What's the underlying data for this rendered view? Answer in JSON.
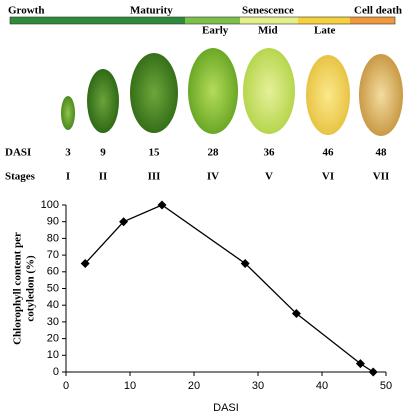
{
  "phases": {
    "top": [
      "Growth",
      "Maturity",
      "Senescence",
      "Cell death"
    ],
    "sub": [
      "Early",
      "Mid",
      "Late"
    ]
  },
  "leaf_table": {
    "dasi_label": "DASI",
    "dasi": [
      "3",
      "9",
      "15",
      "28",
      "36",
      "46",
      "48"
    ],
    "stages_label": "Stages",
    "stages": [
      "I",
      "II",
      "III",
      "IV",
      "V",
      "VI",
      "VII"
    ]
  },
  "chart_data": {
    "type": "line",
    "x_label": "DASI",
    "y_label_lines": [
      "Chlorophyll content per",
      "cotyledon (%)"
    ],
    "series": [
      {
        "name": "Chlorophyll",
        "color": "#000000",
        "x": [
          3,
          9,
          15,
          28,
          36,
          46,
          48
        ],
        "values": [
          65,
          90,
          100,
          65,
          35,
          5,
          0
        ]
      }
    ],
    "xlim": [
      0,
      50
    ],
    "xticks": [
      0,
      10,
      20,
      30,
      40,
      50
    ],
    "ylim": [
      0,
      100
    ],
    "yticks": [
      0,
      10,
      20,
      30,
      40,
      50,
      60,
      70,
      80,
      90,
      100
    ],
    "grid": false
  }
}
